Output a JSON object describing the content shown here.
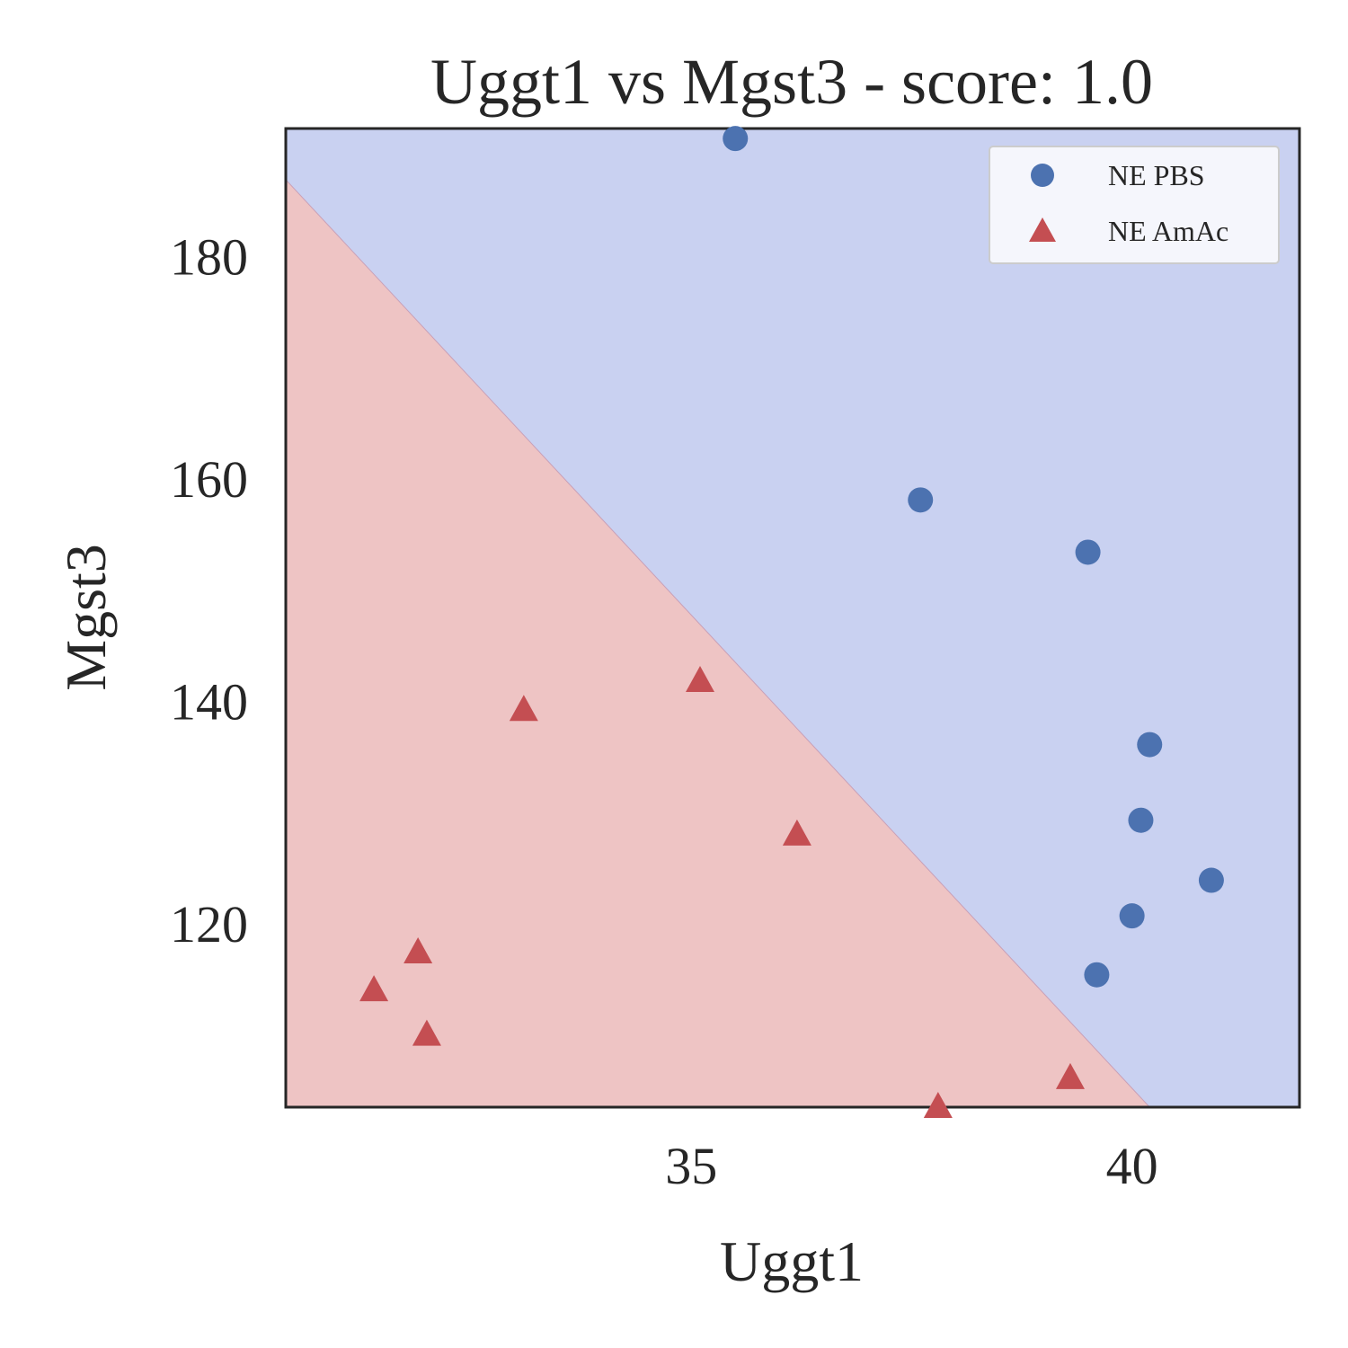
{
  "chart_data": {
    "type": "scatter",
    "title": "Uggt1 vs Mgst3 - score: 1.0",
    "xlabel": "Uggt1",
    "ylabel": "Mgst3",
    "xlim": [
      30.4,
      41.9
    ],
    "ylim": [
      103.5,
      191.5
    ],
    "xticks": [
      35,
      40
    ],
    "yticks": [
      120,
      140,
      160,
      180
    ],
    "grid": false,
    "legend_position": "top-right",
    "decision_boundary": {
      "points": [
        [
          30.4,
          186.9
        ],
        [
          40.2,
          103.5
        ]
      ],
      "regions": [
        {
          "class": "NE PBS",
          "side": "upper-right",
          "color": "#c9d1f1"
        },
        {
          "class": "NE AmAc",
          "side": "lower-left",
          "color": "#eec4c4"
        }
      ]
    },
    "series": [
      {
        "name": "NE PBS",
        "marker": "circle",
        "color": "#4c72b0",
        "points": [
          [
            35.5,
            190.6
          ],
          [
            37.6,
            158.1
          ],
          [
            39.5,
            153.4
          ],
          [
            40.2,
            136.1
          ],
          [
            40.1,
            129.3
          ],
          [
            40.9,
            123.9
          ],
          [
            40.0,
            120.7
          ],
          [
            39.6,
            115.4
          ]
        ]
      },
      {
        "name": "NE AmAc",
        "marker": "triangle",
        "color": "#c44e52",
        "points": [
          [
            35.1,
            141.8
          ],
          [
            33.1,
            139.2
          ],
          [
            36.2,
            128.0
          ],
          [
            31.9,
            117.4
          ],
          [
            31.4,
            114.0
          ],
          [
            32.0,
            110.0
          ],
          [
            39.3,
            106.1
          ],
          [
            37.8,
            103.5
          ]
        ]
      }
    ]
  }
}
